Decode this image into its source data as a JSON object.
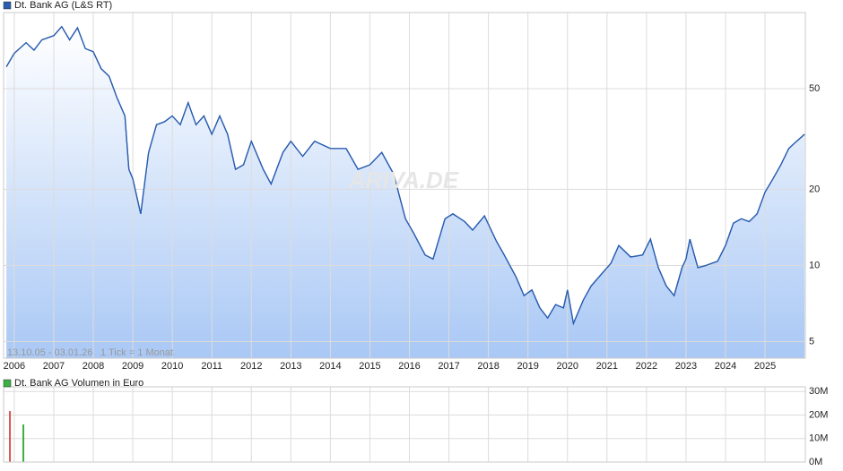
{
  "chart_data": [
    {
      "type": "line",
      "series": [
        {
          "name": "Dt. Bank AG (L&S RT)",
          "color": "#2a5db0",
          "values": [
            61,
            69,
            76,
            71,
            78,
            81,
            88,
            78,
            87,
            72,
            70,
            60,
            56,
            46,
            39,
            24,
            22,
            16,
            28,
            36,
            37,
            39,
            36,
            44,
            36,
            39,
            33,
            39,
            33,
            24,
            25,
            31,
            24,
            21,
            28,
            31,
            27,
            31,
            29,
            29,
            24,
            25,
            28,
            23,
            15.3,
            13.5,
            11,
            10.6,
            15.3,
            16,
            14.9,
            13.8,
            15.7,
            12.5,
            11,
            9,
            7.6,
            8,
            6.8,
            6.2,
            7.0,
            6.8,
            8,
            5.9,
            7.3,
            8.3,
            9.4,
            10.2,
            12,
            10.8,
            11,
            12.7,
            9.8,
            8.3,
            7.6,
            9.8,
            10.6,
            12.7,
            9.8,
            10,
            10.4,
            12,
            14.7,
            15.3,
            14.9,
            16,
            19.5,
            22,
            25,
            29,
            31,
            33
          ]
        }
      ],
      "x": [
        2005.8,
        2006.0,
        2006.3,
        2006.5,
        2006.7,
        2007.0,
        2007.2,
        2007.4,
        2007.6,
        2007.8,
        2008.0,
        2008.2,
        2008.4,
        2008.6,
        2008.8,
        2008.9,
        2009.0,
        2009.2,
        2009.4,
        2009.6,
        2009.8,
        2010.0,
        2010.2,
        2010.4,
        2010.6,
        2010.8,
        2011.0,
        2011.2,
        2011.4,
        2011.6,
        2011.8,
        2012.0,
        2012.3,
        2012.5,
        2012.8,
        2013.0,
        2013.3,
        2013.6,
        2014.0,
        2014.4,
        2014.7,
        2015.0,
        2015.3,
        2015.6,
        2015.9,
        2016.1,
        2016.4,
        2016.6,
        2016.9,
        2017.1,
        2017.4,
        2017.6,
        2017.9,
        2018.2,
        2018.4,
        2018.7,
        2018.9,
        2019.1,
        2019.3,
        2019.5,
        2019.7,
        2019.9,
        2020.0,
        2020.15,
        2020.4,
        2020.6,
        2020.9,
        2021.1,
        2021.3,
        2021.6,
        2021.9,
        2022.1,
        2022.3,
        2022.5,
        2022.7,
        2022.9,
        2023.0,
        2023.1,
        2023.3,
        2023.5,
        2023.8,
        2024.0,
        2024.2,
        2024.4,
        2024.6,
        2024.8,
        2025.0,
        2025.2,
        2025.4,
        2025.6,
        2025.8,
        2026.0
      ],
      "xlim": [
        2005.73,
        2026.02
      ],
      "xticks": [
        2006,
        2007,
        2008,
        2009,
        2010,
        2011,
        2012,
        2013,
        2014,
        2015,
        2016,
        2017,
        2018,
        2019,
        2020,
        2021,
        2022,
        2023,
        2024,
        2025
      ],
      "ylim": [
        4.3,
        100
      ],
      "yticks": [
        5,
        10,
        20,
        50
      ],
      "log_scale": true,
      "grid": true,
      "annotations": [
        "13.10.05 - 03.01.26",
        "1 Tick = 1 Monat",
        "ARIVA.DE"
      ]
    },
    {
      "type": "bar",
      "series": [
        {
          "name": "Dt. Bank AG Volumen in Euro",
          "color": "#3cb043",
          "values": [
            21700000,
            16000000
          ],
          "colors": [
            "#d9534f",
            "#3cb043"
          ]
        }
      ],
      "x": [
        2005.89,
        2006.23
      ],
      "xlim": [
        2005.73,
        2026.02
      ],
      "ylim": [
        0,
        32000000
      ],
      "yticks": [
        {
          "value": 0,
          "label": "0M"
        },
        {
          "value": 10000000,
          "label": "10M"
        },
        {
          "value": 20000000,
          "label": "20M"
        },
        {
          "value": 30000000,
          "label": "30M"
        }
      ],
      "grid": true
    }
  ]
}
